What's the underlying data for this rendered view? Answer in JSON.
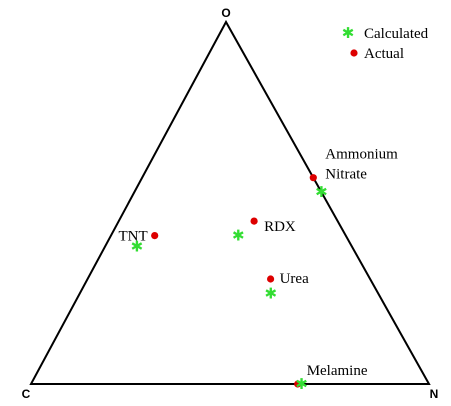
{
  "chart_data": {
    "type": "scatter",
    "chart_kind": "ternary",
    "title": "",
    "vertices": {
      "top": "O",
      "left": "C",
      "right": "N"
    },
    "legend": {
      "placement": "top-right",
      "entries": [
        {
          "key": "calculated",
          "label": "Calculated",
          "marker": "star",
          "color": "#33dd33"
        },
        {
          "key": "actual",
          "label": "Actual",
          "marker": "circle",
          "color": "#dd0000"
        }
      ]
    },
    "points": [
      {
        "name": "Ammonium Nitrate",
        "label_lines": [
          "Ammonium",
          "Nitrate"
        ],
        "actual": {
          "O": 0.57,
          "C": 0.0,
          "N": 0.43
        },
        "calculated": {
          "O": 0.53,
          "C": 0.0,
          "N": 0.47
        }
      },
      {
        "name": "TNT",
        "label_lines": [
          "TNT"
        ],
        "actual": {
          "O": 0.41,
          "C": 0.48,
          "N": 0.11
        },
        "calculated": {
          "O": 0.38,
          "C": 0.54,
          "N": 0.08
        }
      },
      {
        "name": "RDX",
        "label_lines": [
          "RDX"
        ],
        "actual": {
          "O": 0.45,
          "C": 0.21,
          "N": 0.34
        },
        "calculated": {
          "O": 0.41,
          "C": 0.27,
          "N": 0.32
        }
      },
      {
        "name": "Urea",
        "label_lines": [
          "Urea"
        ],
        "actual": {
          "O": 0.29,
          "C": 0.25,
          "N": 0.46
        },
        "calculated": {
          "O": 0.25,
          "C": 0.27,
          "N": 0.48
        }
      },
      {
        "name": "Melamine",
        "label_lines": [
          "Melamine"
        ],
        "actual": {
          "O": 0.0,
          "C": 0.33,
          "N": 0.67
        },
        "calculated": {
          "O": 0.0,
          "C": 0.32,
          "N": 0.68
        }
      }
    ]
  }
}
